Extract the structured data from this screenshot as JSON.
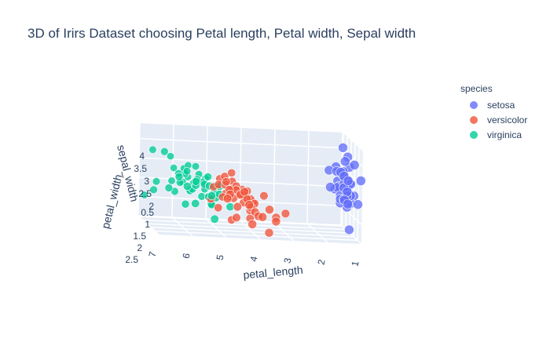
{
  "chart_data": {
    "type": "scatter",
    "title": "3D of Irirs Dataset choosing Petal length, Petal width, Sepal width",
    "axes": {
      "x": {
        "label": "petal_length",
        "ticks": [
          "7",
          "6",
          "5",
          "4",
          "3",
          "2",
          "1"
        ]
      },
      "y": {
        "label": "petal_width",
        "ticks": [
          "0.5",
          "1",
          "1.5",
          "2",
          "2.5"
        ]
      },
      "z": {
        "label": "sepal_width",
        "ticks": [
          "2",
          "2.5",
          "3",
          "3.5",
          "4"
        ]
      }
    },
    "legend": {
      "title": "species",
      "placement": "top-right",
      "items": [
        {
          "name": "setosa",
          "color": "#636efa"
        },
        {
          "name": "versicolor",
          "color": "#ef553b"
        },
        {
          "name": "virginica",
          "color": "#00cc96"
        }
      ]
    },
    "series": [
      {
        "name": "setosa",
        "color": "#636efa",
        "points": [
          [
            1.4,
            0.2,
            3.5
          ],
          [
            1.4,
            0.2,
            3.0
          ],
          [
            1.3,
            0.2,
            3.2
          ],
          [
            1.5,
            0.2,
            3.1
          ],
          [
            1.4,
            0.2,
            3.6
          ],
          [
            1.7,
            0.4,
            3.9
          ],
          [
            1.4,
            0.3,
            3.4
          ],
          [
            1.5,
            0.2,
            3.4
          ],
          [
            1.4,
            0.2,
            2.9
          ],
          [
            1.5,
            0.1,
            3.1
          ],
          [
            1.5,
            0.2,
            3.7
          ],
          [
            1.6,
            0.2,
            3.4
          ],
          [
            1.4,
            0.1,
            3.0
          ],
          [
            1.1,
            0.1,
            3.0
          ],
          [
            1.2,
            0.2,
            4.0
          ],
          [
            1.5,
            0.4,
            4.4
          ],
          [
            1.3,
            0.4,
            3.9
          ],
          [
            1.4,
            0.3,
            3.5
          ],
          [
            1.7,
            0.3,
            3.8
          ],
          [
            1.5,
            0.3,
            3.8
          ],
          [
            1.7,
            0.2,
            3.4
          ],
          [
            1.5,
            0.4,
            3.7
          ],
          [
            1.0,
            0.2,
            3.6
          ],
          [
            1.7,
            0.5,
            3.3
          ],
          [
            1.9,
            0.2,
            3.4
          ],
          [
            1.6,
            0.2,
            3.0
          ],
          [
            1.6,
            0.4,
            3.4
          ],
          [
            1.5,
            0.2,
            3.5
          ],
          [
            1.4,
            0.2,
            3.4
          ],
          [
            1.6,
            0.2,
            3.2
          ],
          [
            1.6,
            0.2,
            3.1
          ],
          [
            1.5,
            0.4,
            3.4
          ],
          [
            1.5,
            0.1,
            4.1
          ],
          [
            1.4,
            0.2,
            4.2
          ],
          [
            1.5,
            0.2,
            3.1
          ],
          [
            1.2,
            0.2,
            3.2
          ],
          [
            1.3,
            0.2,
            3.5
          ],
          [
            1.4,
            0.1,
            3.6
          ],
          [
            1.3,
            0.2,
            3.0
          ],
          [
            1.5,
            0.2,
            3.4
          ],
          [
            1.3,
            0.3,
            3.5
          ],
          [
            1.3,
            0.3,
            2.3
          ],
          [
            1.3,
            0.2,
            3.2
          ],
          [
            1.6,
            0.6,
            3.5
          ],
          [
            1.9,
            0.4,
            3.8
          ],
          [
            1.4,
            0.3,
            3.0
          ],
          [
            1.6,
            0.2,
            3.8
          ],
          [
            1.4,
            0.2,
            3.2
          ],
          [
            1.5,
            0.2,
            3.7
          ],
          [
            1.4,
            0.2,
            3.3
          ]
        ]
      },
      {
        "name": "versicolor",
        "color": "#ef553b",
        "points": [
          [
            4.7,
            1.4,
            3.2
          ],
          [
            4.5,
            1.5,
            3.2
          ],
          [
            4.9,
            1.5,
            3.1
          ],
          [
            4.0,
            1.3,
            2.3
          ],
          [
            4.6,
            1.5,
            2.8
          ],
          [
            4.5,
            1.3,
            2.8
          ],
          [
            4.7,
            1.6,
            3.3
          ],
          [
            3.3,
            1.0,
            2.4
          ],
          [
            4.6,
            1.3,
            2.9
          ],
          [
            3.9,
            1.4,
            2.7
          ],
          [
            3.5,
            1.0,
            2.0
          ],
          [
            4.2,
            1.5,
            3.0
          ],
          [
            4.0,
            1.0,
            2.2
          ],
          [
            4.7,
            1.4,
            2.9
          ],
          [
            3.6,
            1.3,
            2.9
          ],
          [
            4.4,
            1.4,
            3.1
          ],
          [
            4.5,
            1.5,
            3.0
          ],
          [
            4.1,
            1.0,
            2.7
          ],
          [
            4.5,
            1.5,
            2.2
          ],
          [
            3.9,
            1.1,
            2.5
          ],
          [
            4.8,
            1.8,
            3.2
          ],
          [
            4.0,
            1.3,
            2.8
          ],
          [
            4.9,
            1.5,
            2.5
          ],
          [
            4.7,
            1.2,
            2.8
          ],
          [
            4.3,
            1.3,
            2.9
          ],
          [
            4.4,
            1.4,
            3.0
          ],
          [
            4.8,
            1.4,
            2.8
          ],
          [
            5.0,
            1.7,
            3.0
          ],
          [
            4.5,
            1.5,
            2.9
          ],
          [
            3.5,
            1.0,
            2.6
          ],
          [
            3.8,
            1.1,
            2.4
          ],
          [
            3.7,
            1.0,
            2.4
          ],
          [
            3.9,
            1.2,
            2.7
          ],
          [
            5.1,
            1.6,
            2.7
          ],
          [
            4.5,
            1.5,
            3.0
          ],
          [
            4.5,
            1.6,
            3.4
          ],
          [
            4.7,
            1.5,
            3.1
          ],
          [
            4.4,
            1.3,
            2.3
          ],
          [
            4.1,
            1.3,
            3.0
          ],
          [
            4.0,
            1.3,
            2.5
          ],
          [
            4.4,
            1.2,
            2.6
          ],
          [
            4.6,
            1.4,
            3.0
          ],
          [
            4.0,
            1.2,
            2.6
          ],
          [
            3.3,
            1.0,
            2.3
          ],
          [
            4.2,
            1.3,
            2.7
          ],
          [
            4.2,
            1.2,
            3.0
          ],
          [
            4.2,
            1.3,
            2.9
          ],
          [
            4.3,
            1.3,
            2.9
          ],
          [
            3.0,
            1.1,
            2.5
          ],
          [
            4.1,
            1.3,
            2.8
          ]
        ]
      },
      {
        "name": "virginica",
        "color": "#00cc96",
        "points": [
          [
            6.0,
            2.5,
            3.3
          ],
          [
            5.1,
            1.9,
            2.7
          ],
          [
            5.9,
            2.1,
            3.0
          ],
          [
            5.6,
            1.8,
            2.9
          ],
          [
            5.8,
            2.2,
            3.0
          ],
          [
            6.6,
            2.1,
            3.0
          ],
          [
            4.5,
            1.7,
            2.5
          ],
          [
            6.3,
            1.8,
            2.9
          ],
          [
            5.8,
            1.8,
            2.5
          ],
          [
            6.1,
            2.5,
            3.6
          ],
          [
            5.1,
            2.0,
            3.2
          ],
          [
            5.3,
            1.9,
            2.7
          ],
          [
            5.5,
            2.1,
            3.0
          ],
          [
            5.0,
            2.0,
            2.5
          ],
          [
            5.1,
            2.4,
            2.8
          ],
          [
            5.3,
            2.3,
            3.2
          ],
          [
            5.5,
            1.8,
            3.0
          ],
          [
            6.7,
            2.2,
            3.8
          ],
          [
            6.9,
            2.3,
            2.6
          ],
          [
            5.0,
            1.5,
            2.2
          ],
          [
            5.7,
            2.3,
            3.2
          ],
          [
            4.9,
            2.0,
            2.8
          ],
          [
            6.7,
            2.0,
            2.8
          ],
          [
            4.9,
            1.8,
            2.7
          ],
          [
            5.7,
            2.1,
            3.3
          ],
          [
            6.0,
            1.8,
            3.2
          ],
          [
            4.8,
            1.8,
            2.8
          ],
          [
            4.9,
            1.8,
            3.0
          ],
          [
            5.6,
            2.1,
            2.8
          ],
          [
            5.8,
            1.6,
            3.0
          ],
          [
            6.1,
            1.9,
            2.8
          ],
          [
            6.4,
            2.0,
            3.8
          ],
          [
            5.6,
            2.2,
            2.8
          ],
          [
            5.1,
            1.5,
            2.8
          ],
          [
            5.6,
            1.4,
            2.6
          ],
          [
            6.1,
            2.3,
            3.0
          ],
          [
            5.6,
            2.4,
            3.4
          ],
          [
            5.5,
            1.8,
            3.1
          ],
          [
            4.8,
            1.8,
            3.0
          ],
          [
            5.4,
            2.1,
            3.1
          ],
          [
            5.6,
            2.4,
            3.1
          ],
          [
            5.1,
            2.3,
            3.1
          ],
          [
            5.1,
            1.9,
            2.7
          ],
          [
            5.9,
            2.3,
            3.2
          ],
          [
            5.7,
            2.5,
            3.3
          ],
          [
            5.2,
            2.3,
            3.0
          ],
          [
            5.0,
            1.9,
            2.5
          ],
          [
            5.2,
            2.0,
            3.0
          ],
          [
            5.4,
            2.3,
            3.4
          ],
          [
            5.1,
            1.8,
            3.0
          ]
        ]
      }
    ]
  }
}
